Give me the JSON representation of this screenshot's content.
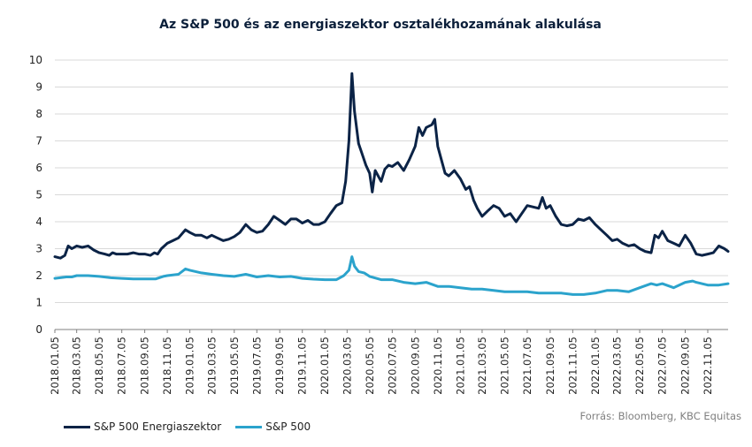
{
  "chart_data": {
    "type": "line",
    "title": "Az S&P 500 és az energiaszektor osztalékhozamának alakulása",
    "xlabel": "",
    "ylabel": "",
    "ylim": [
      0,
      10
    ],
    "yticks": [
      0,
      1,
      2,
      3,
      4,
      5,
      6,
      7,
      8,
      9,
      10
    ],
    "xlim": [
      "2018-01-05",
      "2022-12-30"
    ],
    "x_tick_labels": [
      "2018.01.05",
      "2018.03.05",
      "2018.05.05",
      "2018.07.05",
      "2018.09.05",
      "2018.11.05",
      "2019.01.05",
      "2019.03.05",
      "2019.05.05",
      "2019.07.05",
      "2019.09.05",
      "2019.11.05",
      "2020.01.05",
      "2020.03.05",
      "2020.05.05",
      "2020.07.05",
      "2020.09.05",
      "2020.11.05",
      "2021.01.05",
      "2021.03.05",
      "2021.05.05",
      "2021.07.05",
      "2021.09.05",
      "2021.11.05",
      "2022.01.05",
      "2022.03.05",
      "2022.05.05",
      "2022.07.05",
      "2022.09.05",
      "2022.11.05"
    ],
    "grid": true,
    "legend_position": "bottom-left",
    "series": [
      {
        "name": "S&P 500 Energiaszektor",
        "color": "#0b2346",
        "points": [
          [
            "2018-01-05",
            2.7
          ],
          [
            "2018-01-20",
            2.65
          ],
          [
            "2018-02-01",
            2.75
          ],
          [
            "2018-02-10",
            3.1
          ],
          [
            "2018-02-20",
            3.0
          ],
          [
            "2018-03-05",
            3.1
          ],
          [
            "2018-03-20",
            3.05
          ],
          [
            "2018-04-05",
            3.1
          ],
          [
            "2018-04-20",
            2.95
          ],
          [
            "2018-05-05",
            2.85
          ],
          [
            "2018-05-20",
            2.8
          ],
          [
            "2018-06-01",
            2.75
          ],
          [
            "2018-06-10",
            2.85
          ],
          [
            "2018-06-20",
            2.8
          ],
          [
            "2018-07-05",
            2.8
          ],
          [
            "2018-07-20",
            2.8
          ],
          [
            "2018-08-05",
            2.85
          ],
          [
            "2018-08-20",
            2.8
          ],
          [
            "2018-09-05",
            2.8
          ],
          [
            "2018-09-20",
            2.75
          ],
          [
            "2018-10-01",
            2.85
          ],
          [
            "2018-10-10",
            2.8
          ],
          [
            "2018-10-20",
            3.0
          ],
          [
            "2018-11-05",
            3.2
          ],
          [
            "2018-11-20",
            3.3
          ],
          [
            "2018-12-05",
            3.4
          ],
          [
            "2018-12-24",
            3.7
          ],
          [
            "2019-01-05",
            3.6
          ],
          [
            "2019-01-20",
            3.5
          ],
          [
            "2019-02-05",
            3.5
          ],
          [
            "2019-02-20",
            3.4
          ],
          [
            "2019-03-05",
            3.5
          ],
          [
            "2019-03-20",
            3.4
          ],
          [
            "2019-04-05",
            3.3
          ],
          [
            "2019-04-20",
            3.35
          ],
          [
            "2019-05-05",
            3.45
          ],
          [
            "2019-05-20",
            3.6
          ],
          [
            "2019-06-05",
            3.9
          ],
          [
            "2019-06-20",
            3.7
          ],
          [
            "2019-07-05",
            3.6
          ],
          [
            "2019-07-20",
            3.65
          ],
          [
            "2019-08-05",
            3.9
          ],
          [
            "2019-08-20",
            4.2
          ],
          [
            "2019-09-05",
            4.05
          ],
          [
            "2019-09-20",
            3.9
          ],
          [
            "2019-10-05",
            4.1
          ],
          [
            "2019-10-20",
            4.1
          ],
          [
            "2019-11-05",
            3.95
          ],
          [
            "2019-11-20",
            4.05
          ],
          [
            "2019-12-05",
            3.9
          ],
          [
            "2019-12-20",
            3.9
          ],
          [
            "2020-01-05",
            4.0
          ],
          [
            "2020-01-20",
            4.3
          ],
          [
            "2020-02-05",
            4.6
          ],
          [
            "2020-02-20",
            4.7
          ],
          [
            "2020-03-01",
            5.5
          ],
          [
            "2020-03-10",
            7.0
          ],
          [
            "2020-03-18",
            9.5
          ],
          [
            "2020-03-25",
            8.1
          ],
          [
            "2020-04-05",
            6.9
          ],
          [
            "2020-04-15",
            6.5
          ],
          [
            "2020-04-25",
            6.1
          ],
          [
            "2020-05-05",
            5.8
          ],
          [
            "2020-05-12",
            5.1
          ],
          [
            "2020-05-20",
            5.9
          ],
          [
            "2020-06-05",
            5.5
          ],
          [
            "2020-06-15",
            5.95
          ],
          [
            "2020-06-25",
            6.1
          ],
          [
            "2020-07-05",
            6.05
          ],
          [
            "2020-07-20",
            6.2
          ],
          [
            "2020-08-05",
            5.9
          ],
          [
            "2020-08-20",
            6.3
          ],
          [
            "2020-09-05",
            6.8
          ],
          [
            "2020-09-15",
            7.5
          ],
          [
            "2020-09-25",
            7.2
          ],
          [
            "2020-10-05",
            7.5
          ],
          [
            "2020-10-20",
            7.6
          ],
          [
            "2020-10-28",
            7.8
          ],
          [
            "2020-11-05",
            6.8
          ],
          [
            "2020-11-15",
            6.3
          ],
          [
            "2020-11-25",
            5.8
          ],
          [
            "2020-12-05",
            5.7
          ],
          [
            "2020-12-20",
            5.9
          ],
          [
            "2021-01-05",
            5.6
          ],
          [
            "2021-01-20",
            5.2
          ],
          [
            "2021-01-30",
            5.3
          ],
          [
            "2021-02-10",
            4.8
          ],
          [
            "2021-02-20",
            4.5
          ],
          [
            "2021-03-05",
            4.2
          ],
          [
            "2021-03-20",
            4.4
          ],
          [
            "2021-04-05",
            4.6
          ],
          [
            "2021-04-20",
            4.5
          ],
          [
            "2021-05-05",
            4.2
          ],
          [
            "2021-05-20",
            4.3
          ],
          [
            "2021-06-05",
            4.0
          ],
          [
            "2021-06-20",
            4.3
          ],
          [
            "2021-07-05",
            4.6
          ],
          [
            "2021-07-20",
            4.55
          ],
          [
            "2021-08-05",
            4.5
          ],
          [
            "2021-08-15",
            4.9
          ],
          [
            "2021-08-25",
            4.5
          ],
          [
            "2021-09-05",
            4.6
          ],
          [
            "2021-09-20",
            4.2
          ],
          [
            "2021-10-05",
            3.9
          ],
          [
            "2021-10-20",
            3.85
          ],
          [
            "2021-11-05",
            3.9
          ],
          [
            "2021-11-20",
            4.1
          ],
          [
            "2021-12-05",
            4.05
          ],
          [
            "2021-12-20",
            4.15
          ],
          [
            "2022-01-05",
            3.9
          ],
          [
            "2022-01-20",
            3.7
          ],
          [
            "2022-02-05",
            3.5
          ],
          [
            "2022-02-20",
            3.3
          ],
          [
            "2022-03-05",
            3.35
          ],
          [
            "2022-03-20",
            3.2
          ],
          [
            "2022-04-05",
            3.1
          ],
          [
            "2022-04-20",
            3.15
          ],
          [
            "2022-05-05",
            3.0
          ],
          [
            "2022-05-20",
            2.9
          ],
          [
            "2022-06-05",
            2.85
          ],
          [
            "2022-06-15",
            3.5
          ],
          [
            "2022-06-25",
            3.4
          ],
          [
            "2022-07-05",
            3.65
          ],
          [
            "2022-07-20",
            3.3
          ],
          [
            "2022-08-05",
            3.2
          ],
          [
            "2022-08-20",
            3.1
          ],
          [
            "2022-09-05",
            3.5
          ],
          [
            "2022-09-20",
            3.2
          ],
          [
            "2022-10-05",
            2.8
          ],
          [
            "2022-10-20",
            2.75
          ],
          [
            "2022-11-05",
            2.8
          ],
          [
            "2022-11-20",
            2.85
          ],
          [
            "2022-12-05",
            3.1
          ],
          [
            "2022-12-20",
            3.0
          ],
          [
            "2022-12-30",
            2.9
          ]
        ]
      },
      {
        "name": "S&P 500",
        "color": "#2ba3cc",
        "points": [
          [
            "2018-01-05",
            1.9
          ],
          [
            "2018-02-05",
            1.95
          ],
          [
            "2018-02-20",
            1.95
          ],
          [
            "2018-03-05",
            2.0
          ],
          [
            "2018-04-05",
            2.0
          ],
          [
            "2018-05-05",
            1.97
          ],
          [
            "2018-06-05",
            1.92
          ],
          [
            "2018-07-05",
            1.9
          ],
          [
            "2018-08-05",
            1.88
          ],
          [
            "2018-09-05",
            1.88
          ],
          [
            "2018-10-05",
            1.88
          ],
          [
            "2018-10-25",
            1.97
          ],
          [
            "2018-11-05",
            2.0
          ],
          [
            "2018-12-05",
            2.05
          ],
          [
            "2018-12-24",
            2.25
          ],
          [
            "2019-01-05",
            2.2
          ],
          [
            "2019-02-05",
            2.1
          ],
          [
            "2019-03-05",
            2.05
          ],
          [
            "2019-04-05",
            2.0
          ],
          [
            "2019-05-05",
            1.97
          ],
          [
            "2019-06-05",
            2.05
          ],
          [
            "2019-07-05",
            1.95
          ],
          [
            "2019-08-05",
            2.0
          ],
          [
            "2019-09-05",
            1.95
          ],
          [
            "2019-10-05",
            1.97
          ],
          [
            "2019-11-05",
            1.9
          ],
          [
            "2019-12-05",
            1.87
          ],
          [
            "2020-01-05",
            1.85
          ],
          [
            "2020-02-05",
            1.85
          ],
          [
            "2020-02-25",
            2.0
          ],
          [
            "2020-03-10",
            2.2
          ],
          [
            "2020-03-18",
            2.7
          ],
          [
            "2020-03-25",
            2.35
          ],
          [
            "2020-04-05",
            2.15
          ],
          [
            "2020-04-20",
            2.1
          ],
          [
            "2020-05-05",
            1.97
          ],
          [
            "2020-06-05",
            1.85
          ],
          [
            "2020-07-05",
            1.85
          ],
          [
            "2020-08-05",
            1.75
          ],
          [
            "2020-09-05",
            1.7
          ],
          [
            "2020-10-05",
            1.75
          ],
          [
            "2020-11-05",
            1.6
          ],
          [
            "2020-12-05",
            1.6
          ],
          [
            "2021-01-05",
            1.55
          ],
          [
            "2021-02-05",
            1.5
          ],
          [
            "2021-03-05",
            1.5
          ],
          [
            "2021-04-05",
            1.45
          ],
          [
            "2021-05-05",
            1.4
          ],
          [
            "2021-06-05",
            1.4
          ],
          [
            "2021-07-05",
            1.4
          ],
          [
            "2021-08-05",
            1.35
          ],
          [
            "2021-09-05",
            1.35
          ],
          [
            "2021-10-05",
            1.35
          ],
          [
            "2021-11-05",
            1.3
          ],
          [
            "2021-12-05",
            1.3
          ],
          [
            "2022-01-05",
            1.35
          ],
          [
            "2022-02-05",
            1.45
          ],
          [
            "2022-03-05",
            1.45
          ],
          [
            "2022-04-05",
            1.4
          ],
          [
            "2022-05-05",
            1.55
          ],
          [
            "2022-06-05",
            1.7
          ],
          [
            "2022-06-20",
            1.65
          ],
          [
            "2022-07-05",
            1.7
          ],
          [
            "2022-08-05",
            1.55
          ],
          [
            "2022-09-05",
            1.75
          ],
          [
            "2022-09-25",
            1.8
          ],
          [
            "2022-10-05",
            1.75
          ],
          [
            "2022-11-05",
            1.65
          ],
          [
            "2022-12-05",
            1.65
          ],
          [
            "2022-12-30",
            1.7
          ]
        ]
      }
    ],
    "source": "Forrás: Bloomberg, KBC Equitas"
  }
}
